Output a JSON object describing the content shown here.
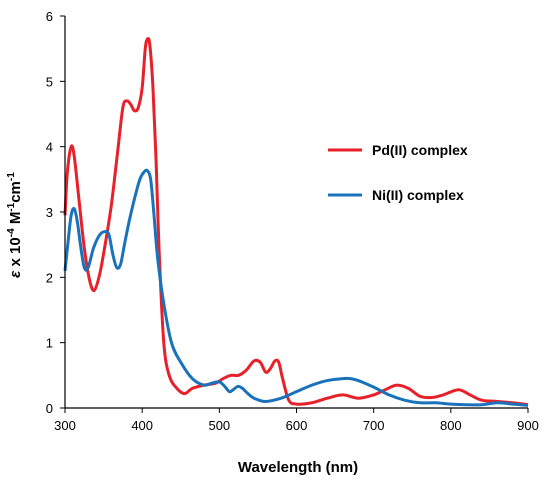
{
  "chart_data": {
    "type": "line",
    "title": "",
    "xlabel": "Wavelength (nm)",
    "ylabel_parts": {
      "symbol": "ε",
      "mid": " x 10",
      "exp1": "-4",
      "unit1": " M",
      "exp2": "-1",
      "unit2": "cm",
      "exp3": "-1"
    },
    "xlim": [
      300,
      900
    ],
    "ylim": [
      0,
      6
    ],
    "x_ticks": [
      300,
      400,
      500,
      600,
      700,
      800,
      900
    ],
    "y_ticks": [
      0,
      1,
      2,
      3,
      4,
      5,
      6
    ],
    "grid": false,
    "legend_position": "right-middle",
    "series": [
      {
        "name": "Pd(II) complex",
        "color": "#e8202a",
        "x": [
          300,
          303,
          308,
          312,
          318,
          325,
          332,
          338,
          345,
          352,
          360,
          368,
          375,
          380,
          385,
          390,
          395,
          400,
          404,
          407,
          410,
          414,
          418,
          422,
          428,
          435,
          445,
          455,
          465,
          480,
          495,
          505,
          515,
          525,
          535,
          545,
          553,
          560,
          566,
          572,
          577,
          582,
          590,
          600,
          620,
          640,
          660,
          680,
          700,
          715,
          730,
          745,
          760,
          775,
          790,
          810,
          825,
          840,
          860,
          880,
          895,
          900
        ],
        "y": [
          2.95,
          3.6,
          4.0,
          3.85,
          3.2,
          2.45,
          1.95,
          1.8,
          2.05,
          2.5,
          3.1,
          3.9,
          4.6,
          4.7,
          4.65,
          4.55,
          4.6,
          4.9,
          5.5,
          5.65,
          5.55,
          4.9,
          3.8,
          2.4,
          1.0,
          0.5,
          0.3,
          0.22,
          0.3,
          0.35,
          0.38,
          0.45,
          0.5,
          0.5,
          0.58,
          0.72,
          0.7,
          0.55,
          0.6,
          0.72,
          0.7,
          0.45,
          0.12,
          0.06,
          0.08,
          0.15,
          0.2,
          0.15,
          0.2,
          0.28,
          0.35,
          0.3,
          0.18,
          0.16,
          0.2,
          0.28,
          0.2,
          0.12,
          0.1,
          0.08,
          0.06,
          0.05
        ]
      },
      {
        "name": "Ni(II) complex",
        "color": "#1a72bb",
        "x": [
          300,
          304,
          308,
          312,
          316,
          320,
          325,
          330,
          337,
          345,
          352,
          357,
          362,
          367,
          372,
          377,
          383,
          390,
          397,
          403,
          407,
          411,
          415,
          420,
          428,
          438,
          450,
          465,
          480,
          490,
          500,
          507,
          513,
          518,
          524,
          530,
          537,
          545,
          560,
          580,
          600,
          620,
          640,
          660,
          670,
          680,
          700,
          720,
          740,
          760,
          780,
          800,
          820,
          840,
          860,
          880,
          900
        ],
        "y": [
          2.1,
          2.55,
          2.95,
          3.05,
          2.85,
          2.5,
          2.15,
          2.15,
          2.45,
          2.65,
          2.7,
          2.65,
          2.35,
          2.15,
          2.2,
          2.5,
          2.85,
          3.2,
          3.5,
          3.62,
          3.63,
          3.5,
          3.0,
          2.3,
          1.6,
          1.0,
          0.7,
          0.45,
          0.35,
          0.38,
          0.4,
          0.33,
          0.25,
          0.28,
          0.33,
          0.3,
          0.22,
          0.15,
          0.1,
          0.15,
          0.25,
          0.35,
          0.42,
          0.45,
          0.45,
          0.42,
          0.32,
          0.2,
          0.12,
          0.08,
          0.08,
          0.06,
          0.05,
          0.05,
          0.08,
          0.06,
          0.04
        ]
      }
    ]
  }
}
